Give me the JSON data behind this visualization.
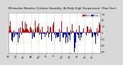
{
  "title": "Milwaukee Weather Outdoor Humidity  At Daily High Temperature  (Past Year)",
  "title_fontsize": 2.8,
  "bg_color": "#d8d8d8",
  "plot_bg_color": "#ffffff",
  "bar_width": 1.0,
  "ylim": [
    -65,
    65
  ],
  "legend_labels": [
    "Above Avg",
    "Below Avg"
  ],
  "legend_colors": [
    "#cc0000",
    "#0000cc"
  ],
  "vline_color": "#aaaaaa",
  "n_days": 365,
  "seed": 42,
  "ytick_vals": [
    60,
    40,
    20,
    0,
    -20,
    -40,
    -60
  ],
  "ytick_labels": [
    "60",
    "40",
    "20",
    "0",
    "-20",
    "-40",
    "-60"
  ]
}
